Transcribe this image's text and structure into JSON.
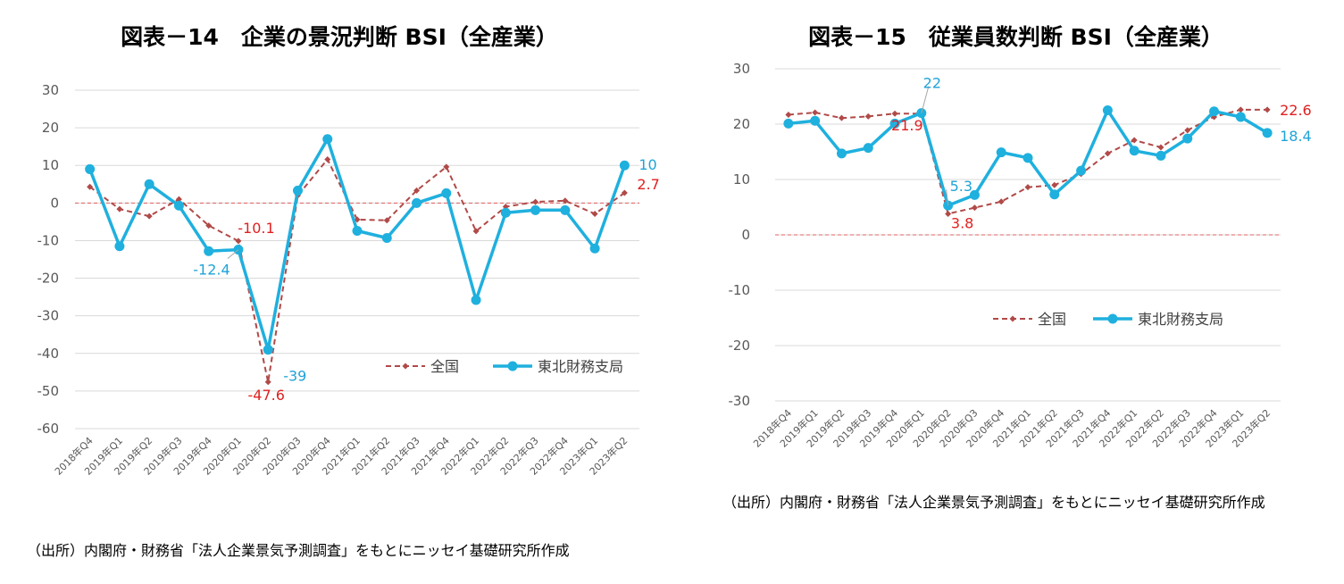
{
  "charts": [
    {
      "title": "図表－14　企業の景況判断 BSI（全産業）",
      "note": "（出所）内閣府・財務省「法人企業景気予測調査」をもとにニッセイ基礎研究所作成"
    },
    {
      "title": "図表－15　従業員数判断 BSI（全産業）",
      "note": "（出所）内閣府・財務省「法人企業景気予測調査」をもとにニッセイ基礎研究所作成"
    }
  ],
  "chart_data": [
    {
      "type": "line",
      "title": "図表－14　企業の景況判断 BSI（全産業）",
      "categories": [
        "2018年Q4",
        "2019年Q1",
        "2019年Q2",
        "2019年Q3",
        "2019年Q4",
        "2020年Q1",
        "2020年Q2",
        "2020年Q3",
        "2020年Q4",
        "2021年Q1",
        "2021年Q2",
        "2021年Q3",
        "2021年Q4",
        "2022年Q1",
        "2022年Q2",
        "2022年Q3",
        "2022年Q4",
        "2023年Q1",
        "2023年Q2"
      ],
      "series": [
        {
          "name": "全国",
          "color": "#B04A48",
          "values": [
            4.3,
            -1.6,
            -3.5,
            1.0,
            -6.0,
            -10.1,
            -47.6,
            2.0,
            11.6,
            -4.4,
            -4.6,
            3.3,
            9.6,
            -7.5,
            -1.0,
            0.3,
            0.6,
            -2.9,
            2.7
          ]
        },
        {
          "name": "東北財務支局",
          "color": "#1FB0DE",
          "values": [
            9.0,
            -11.5,
            5.0,
            -0.7,
            -12.8,
            -12.4,
            -39.0,
            3.3,
            17.0,
            -7.4,
            -9.3,
            0.0,
            2.6,
            -25.8,
            -2.6,
            -1.9,
            -1.9,
            -12.1,
            10.0
          ]
        }
      ],
      "ylim": [
        -60,
        30
      ],
      "yticks": [
        "30",
        "20",
        "10",
        "0",
        "-10",
        "-20",
        "-30",
        "-40",
        "-50",
        "-60"
      ],
      "ytick_values": [
        30,
        20,
        10,
        0,
        -10,
        -20,
        -30,
        -40,
        -50,
        -60
      ],
      "legend_position": "lower-right",
      "grid": true,
      "zero_line_color": "#E06060",
      "annotations": [
        {
          "text": "-10.1",
          "series": 0,
          "index": 5,
          "color": "#E02020"
        },
        {
          "text": "-47.6",
          "series": 0,
          "index": 6,
          "color": "#E02020"
        },
        {
          "text": "2.7",
          "series": 0,
          "index": 18,
          "color": "#E02020"
        },
        {
          "text": "-12.4",
          "series": 1,
          "index": 5,
          "color": "#1FA3D8"
        },
        {
          "text": "-39",
          "series": 1,
          "index": 6,
          "color": "#1FA3D8"
        },
        {
          "text": "10",
          "series": 1,
          "index": 18,
          "color": "#1FA3D8"
        }
      ]
    },
    {
      "type": "line",
      "title": "図表－15　従業員数判断 BSI（全産業）",
      "categories": [
        "2018年Q4",
        "2019年Q1",
        "2019年Q2",
        "2019年Q3",
        "2019年Q4",
        "2020年Q1",
        "2020年Q2",
        "2020年Q3",
        "2020年Q4",
        "2021年Q1",
        "2021年Q2",
        "2021年Q3",
        "2021年Q4",
        "2022年Q1",
        "2022年Q2",
        "2022年Q3",
        "2022年Q4",
        "2023年Q1",
        "2023年Q2"
      ],
      "series": [
        {
          "name": "全国",
          "color": "#B04A48",
          "values": [
            21.7,
            22.1,
            21.1,
            21.4,
            21.9,
            21.9,
            3.8,
            4.9,
            6.0,
            8.6,
            9.0,
            11.0,
            14.7,
            17.1,
            15.8,
            18.9,
            21.3,
            22.6,
            22.6
          ]
        },
        {
          "name": "東北財務支局",
          "color": "#1FB0DE",
          "values": [
            20.1,
            20.6,
            14.7,
            15.7,
            20.1,
            22.0,
            5.3,
            7.2,
            14.9,
            13.9,
            7.3,
            11.6,
            22.5,
            15.2,
            14.3,
            17.4,
            22.3,
            21.3,
            18.4
          ]
        }
      ],
      "ylim": [
        -30,
        30
      ],
      "yticks": [
        "30",
        "20",
        "10",
        "0",
        "-10",
        "-20",
        "-30"
      ],
      "ytick_values": [
        30,
        20,
        10,
        0,
        -10,
        -20,
        -30
      ],
      "legend_position": "center-left",
      "grid": true,
      "zero_line_color": "#E06060",
      "annotations": [
        {
          "text": "21.9",
          "series": 0,
          "index": 5,
          "color": "#E02020"
        },
        {
          "text": "3.8",
          "series": 0,
          "index": 6,
          "color": "#E02020"
        },
        {
          "text": "22.6",
          "series": 0,
          "index": 18,
          "color": "#E02020"
        },
        {
          "text": "22",
          "series": 1,
          "index": 5,
          "color": "#1FA3D8"
        },
        {
          "text": "5.3",
          "series": 1,
          "index": 6,
          "color": "#1FA3D8"
        },
        {
          "text": "18.4",
          "series": 1,
          "index": 18,
          "color": "#1FA3D8"
        }
      ]
    }
  ]
}
